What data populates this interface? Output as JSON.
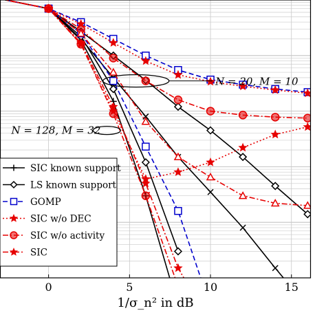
{
  "chart_data": {
    "type": "line",
    "xlabel": "1/σ_n² in dB",
    "xlim": [
      -3,
      16.2
    ],
    "x_ticks": [
      0,
      5,
      10,
      15
    ],
    "y_scale": "log",
    "y_decades": [
      -5,
      0
    ],
    "grid": true,
    "legend_position": "lower-left",
    "annotations": [
      {
        "text": "N = 20, M = 10",
        "x": 10.3,
        "y": 0.035
      },
      {
        "text": "N = 128, M = 32",
        "x": -2.3,
        "y": 0.0045
      }
    ],
    "series": [
      {
        "name": "SIC known support",
        "color": "#000000",
        "dash": "solid",
        "marker": "plus-diamond",
        "group": "N=128, M=32",
        "x": [
          -3,
          0,
          2,
          4,
          6,
          8
        ],
        "y": [
          1.05,
          0.7,
          0.19,
          0.015,
          0.0003,
          3e-06
        ]
      },
      {
        "name": "SIC known support",
        "color": "#000000",
        "dash": "solid",
        "marker": "cross",
        "group": "N=20, M=10",
        "x": [
          -3,
          0,
          2,
          4,
          6,
          8,
          10,
          12,
          14,
          16
        ],
        "y": [
          1.05,
          0.7,
          0.2,
          0.04,
          0.008,
          0.0015,
          0.00035,
          8e-05,
          1.5e-05,
          3e-06
        ]
      },
      {
        "name": "LS known support",
        "color": "#000000",
        "dash": "solid",
        "marker": "diamond",
        "group": "N=128, M=32",
        "x": [
          -3,
          0,
          2,
          4,
          6,
          8
        ],
        "y": [
          1.05,
          0.7,
          0.22,
          0.025,
          0.0012,
          3e-05
        ]
      },
      {
        "name": "LS known support",
        "color": "#000000",
        "dash": "solid",
        "marker": "diamond",
        "group": "N=20, M=10",
        "x": [
          -3,
          0,
          2,
          4,
          6,
          8,
          10,
          12,
          14,
          16
        ],
        "y": [
          1.05,
          0.7,
          0.27,
          0.1,
          0.036,
          0.012,
          0.0045,
          0.0015,
          0.00045,
          0.00014
        ]
      },
      {
        "name": "GOMP",
        "color": "#0000cc",
        "dash": "dashed",
        "marker": "square",
        "group": "N=128, M=32",
        "x": [
          -3,
          0,
          2,
          4,
          6,
          8,
          10
        ],
        "y": [
          1.05,
          0.7,
          0.25,
          0.035,
          0.0023,
          0.00016,
          3e-06
        ]
      },
      {
        "name": "GOMP",
        "color": "#0000cc",
        "dash": "dashed",
        "marker": "square",
        "group": "N=20, M=10",
        "x": [
          -3,
          0,
          2,
          4,
          6,
          8,
          10,
          12,
          14,
          16
        ],
        "y": [
          1.05,
          0.7,
          0.4,
          0.2,
          0.1,
          0.055,
          0.037,
          0.03,
          0.025,
          0.022
        ]
      },
      {
        "name": "SIC w/o DEC",
        "color": "#e60000",
        "dash": "dotted",
        "marker": "star",
        "group": "N=20, M=10",
        "x": [
          -3,
          0,
          2,
          4,
          6,
          8,
          10,
          12,
          14,
          16
        ],
        "y": [
          1.05,
          0.7,
          0.37,
          0.17,
          0.08,
          0.045,
          0.034,
          0.028,
          0.024,
          0.021
        ]
      },
      {
        "name": "SIC w/o activity",
        "color": "#e60000",
        "dash": "dashdot",
        "marker": "circle",
        "group": "N=128, M=32",
        "x": [
          -3,
          0,
          2,
          4,
          6,
          8,
          10
        ],
        "y": [
          1.05,
          0.7,
          0.16,
          0.009,
          0.0003,
          7e-06,
          8e-06
        ]
      },
      {
        "name": "SIC w/o activity",
        "color": "#e60000",
        "dash": "dashdot",
        "marker": "circle",
        "group": "N=20, M=10",
        "x": [
          -3,
          0,
          2,
          4,
          6,
          8,
          10,
          12,
          14,
          16
        ],
        "y": [
          1.05,
          0.7,
          0.3,
          0.09,
          0.035,
          0.016,
          0.01,
          0.0085,
          0.0078,
          0.0075
        ]
      },
      {
        "name": "SIC",
        "color": "#e60000",
        "dash": "dashdot",
        "marker": "star",
        "group": "N=128, M=32",
        "x": [
          -3,
          0,
          2,
          4,
          6,
          8,
          10
        ],
        "y": [
          1.05,
          0.7,
          0.17,
          0.012,
          0.0005,
          1.5e-05,
          1.5e-06
        ]
      },
      {
        "name": "SIC",
        "color": "#e60000",
        "dash": "dashdot",
        "marker": "triangle",
        "group": "N=20, M=10",
        "x": [
          -3,
          0,
          2,
          4,
          6,
          8,
          10,
          12,
          14,
          16
        ],
        "y": [
          1.05,
          0.7,
          0.25,
          0.05,
          0.0065,
          0.0015,
          0.00065,
          0.0003,
          0.00022,
          0.0002
        ]
      },
      {
        "name": "SIC",
        "color": "#e60000",
        "dash": "dotted",
        "marker": "star",
        "group": "N=128, M=32 (w/o DEC)",
        "x": [
          -3,
          0,
          2,
          4,
          6,
          8,
          10,
          12,
          14,
          16
        ],
        "y": [
          1.05,
          0.7,
          0.16,
          0.01,
          0.0006,
          0.0008,
          0.0012,
          0.0022,
          0.0038,
          0.0052
        ]
      }
    ],
    "legend": [
      {
        "label": "SIC known support",
        "color": "#000000",
        "dash": "solid",
        "marker": "plus"
      },
      {
        "label": "LS known support",
        "color": "#000000",
        "dash": "solid",
        "marker": "diamond"
      },
      {
        "label": "GOMP",
        "color": "#0000cc",
        "dash": "dashed",
        "marker": "square"
      },
      {
        "label": "SIC w/o DEC",
        "color": "#e60000",
        "dash": "dotted",
        "marker": "star"
      },
      {
        "label": "SIC w/o activity",
        "color": "#e60000",
        "dash": "dashdot",
        "marker": "circle"
      },
      {
        "label": "SIC",
        "color": "#e60000",
        "dash": "dashdot",
        "marker": "star"
      }
    ]
  }
}
